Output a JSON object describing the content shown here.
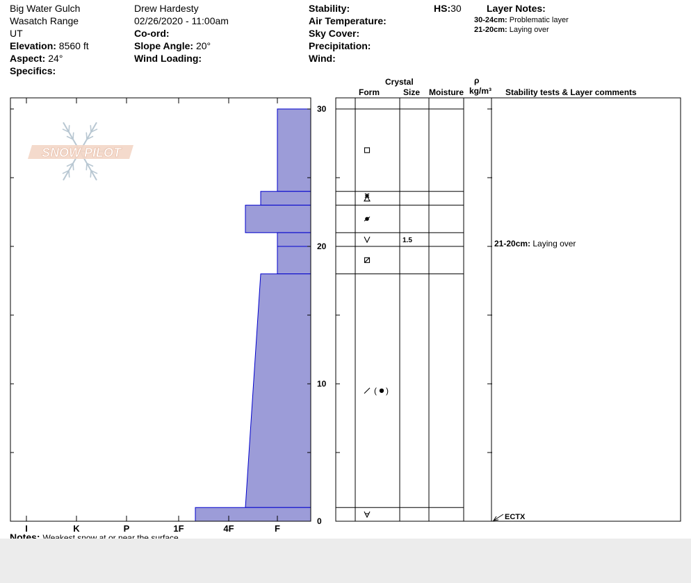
{
  "header": {
    "location": "Big Water Gulch",
    "range": "Wasatch Range",
    "state": "UT",
    "elevation_label": "Elevation:",
    "elevation_value": "8560 ft",
    "aspect_label": "Aspect:",
    "aspect_value": "24°",
    "specifics_label": "Specifics:",
    "observer": "Drew Hardesty",
    "datetime": "02/26/2020 - 11:00am",
    "coord_label": "Co-ord:",
    "slope_label": "Slope Angle:",
    "slope_value": "20°",
    "wind_loading_label": "Wind Loading:",
    "stability_label": "Stability:",
    "air_temp_label": "Air Temperature:",
    "sky_cover_label": "Sky Cover:",
    "precip_label": "Precipitation:",
    "wind_label": "Wind:",
    "hs_label": "HS:",
    "hs_value": "30",
    "layer_notes_title": "Layer Notes:",
    "layer_notes": [
      {
        "range": "30-24cm:",
        "text": "Problematic layer"
      },
      {
        "range": "21-20cm:",
        "text": "Laying over"
      }
    ]
  },
  "columns": {
    "crystal": "Crystal",
    "form": "Form",
    "size": "Size",
    "moisture": "Moisture",
    "rho": "ρ",
    "density": "kg/m³",
    "comments": "Stability tests & Layer comments"
  },
  "logo_text": "SNOW PILOT",
  "notes_label": "Notes:",
  "notes_text": "Weakest snow at or near the surface",
  "comments": {
    "layer_range": "21-20cm:",
    "layer_text": "Laying over",
    "test": "ECTX"
  },
  "chart_data": {
    "type": "area",
    "title": "",
    "xlabel": "",
    "ylabel": "",
    "hardness_ticks": [
      "I",
      "K",
      "P",
      "1F",
      "4F",
      "F"
    ],
    "y_ticks": [
      "0",
      "10",
      "20",
      "30"
    ],
    "ylim": [
      0,
      31
    ],
    "hardness_index_range": [
      6.5,
      0.5
    ],
    "fill_color": "#9c9cd8",
    "edge_color": "#0000cc",
    "layers": [
      {
        "top": 30,
        "bottom": 24,
        "hardness": "F",
        "form": "square-icon",
        "size": ""
      },
      {
        "top": 24,
        "bottom": 23,
        "hardness": "F+",
        "form": "faceted-rounded-icon",
        "size": ""
      },
      {
        "top": 23,
        "bottom": 21,
        "hardness": "4F-",
        "form": "dot-slash-icon",
        "size": ""
      },
      {
        "top": 21,
        "bottom": 20,
        "hardness": "F",
        "form": "chevron-icon",
        "size": "1.5"
      },
      {
        "top": 20,
        "bottom": 18,
        "hardness": "F",
        "form": "slashed-square-icon",
        "size": ""
      },
      {
        "top": 18,
        "bottom": 1,
        "hardness_top": "F+",
        "hardness_bottom": "4F-",
        "form": "melt-freeze-icon",
        "size": ""
      },
      {
        "top": 1,
        "bottom": 0,
        "hardness": "1F-",
        "form": "depth-hoar-icon",
        "size": ""
      }
    ]
  }
}
